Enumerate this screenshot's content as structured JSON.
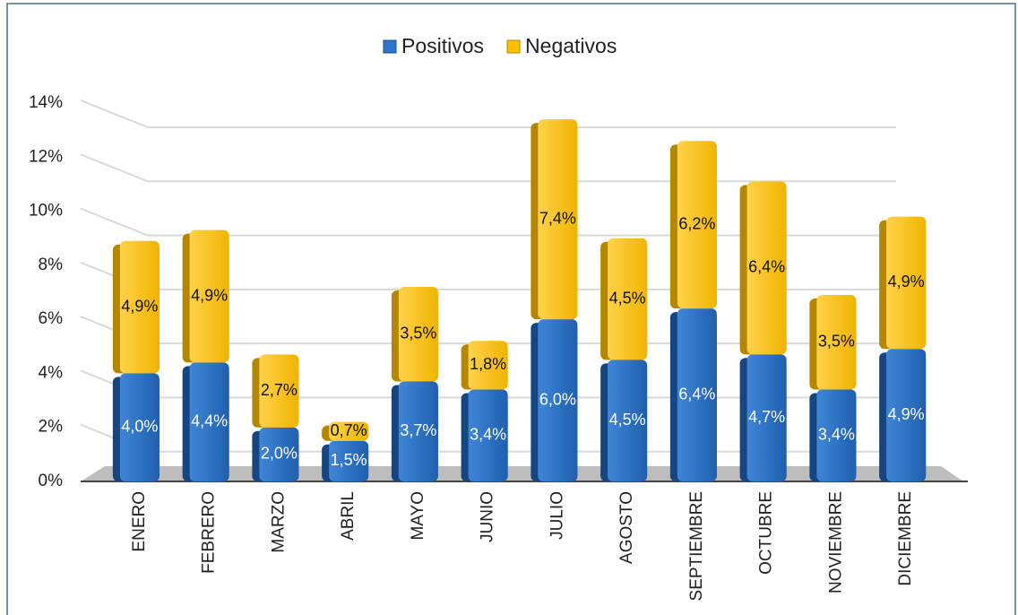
{
  "chart_data": {
    "type": "stacked_bar",
    "categories": [
      "ENERO",
      "FEBRERO",
      "MARZO",
      "ABRIL",
      "MAYO",
      "JUNIO",
      "JULIO",
      "AGOSTO",
      "SEPTIEMBRE",
      "OCTUBRE",
      "NOVIEMBRE",
      "DICIEMBRE"
    ],
    "series": [
      {
        "name": "Positivos",
        "color": "#2e75c8",
        "values": [
          4.0,
          4.4,
          2.0,
          1.5,
          3.7,
          3.4,
          6.0,
          4.5,
          6.4,
          4.7,
          3.4,
          4.9
        ],
        "value_labels": [
          "4,0%",
          "4,4%",
          "2,0%",
          "1,5%",
          "3,7%",
          "3,4%",
          "6,0%",
          "4,5%",
          "6,4%",
          "4,7%",
          "3,4%",
          "4,9%"
        ]
      },
      {
        "name": "Negativos",
        "color": "#ffc000",
        "values": [
          4.9,
          4.9,
          2.7,
          0.7,
          3.5,
          1.8,
          7.4,
          4.5,
          6.2,
          6.4,
          3.5,
          4.9
        ],
        "value_labels": [
          "4,9%",
          "4,9%",
          "2,7%",
          "0,7%",
          "3,5%",
          "1,8%",
          "7,4%",
          "4,5%",
          "6,2%",
          "6,4%",
          "3,5%",
          "4,9%"
        ]
      }
    ],
    "ylim": [
      0,
      14
    ],
    "yticks": [
      {
        "value": 0,
        "label": "0%"
      },
      {
        "value": 2,
        "label": "2%"
      },
      {
        "value": 4,
        "label": "4%"
      },
      {
        "value": 6,
        "label": "6%"
      },
      {
        "value": 8,
        "label": "8%"
      },
      {
        "value": 10,
        "label": "10%"
      },
      {
        "value": 12,
        "label": "12%"
      },
      {
        "value": 14,
        "label": "14%"
      }
    ],
    "grid": true,
    "legend": "top"
  }
}
